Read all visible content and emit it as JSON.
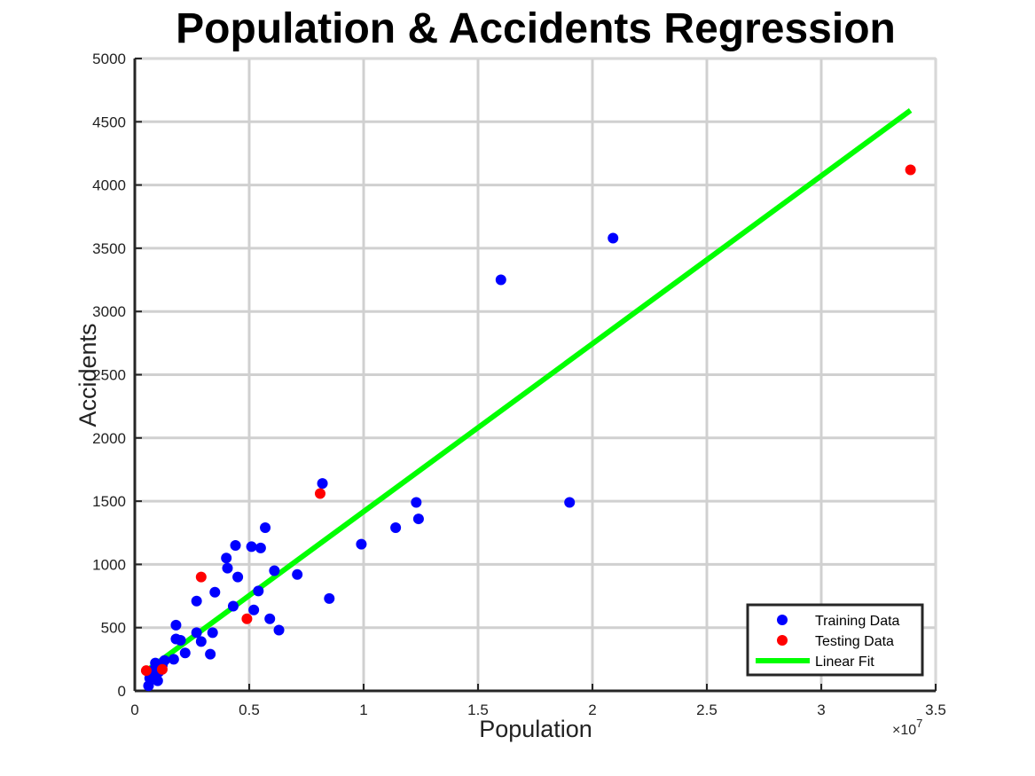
{
  "chart_data": {
    "type": "scatter",
    "title": "Population & Accidents Regression",
    "xlabel": "Population",
    "ylabel": "Accidents",
    "x_exponent_label": "×10",
    "x_exponent_power": "7",
    "xlim": [
      0,
      35000000
    ],
    "ylim": [
      0,
      5000
    ],
    "x_ticks": [
      0,
      5000000,
      10000000,
      15000000,
      20000000,
      25000000,
      30000000,
      35000000
    ],
    "x_tick_labels": [
      "0",
      "0.5",
      "1",
      "1.5",
      "2",
      "2.5",
      "3",
      "3.5"
    ],
    "y_ticks": [
      0,
      500,
      1000,
      1500,
      2000,
      2500,
      3000,
      3500,
      4000,
      4500,
      5000
    ],
    "y_tick_labels": [
      "0",
      "500",
      "1000",
      "1500",
      "2000",
      "2500",
      "3000",
      "3500",
      "4000",
      "4500",
      "5000"
    ],
    "grid": true,
    "legend_position": "bottom-right",
    "series": [
      {
        "name": "Training Data",
        "kind": "scatter",
        "color": "#0000ff",
        "points": [
          [
            600000,
            40
          ],
          [
            650000,
            100
          ],
          [
            700000,
            120
          ],
          [
            800000,
            160
          ],
          [
            900000,
            220
          ],
          [
            1000000,
            80
          ],
          [
            1050000,
            150
          ],
          [
            1200000,
            200
          ],
          [
            1300000,
            240
          ],
          [
            1700000,
            250
          ],
          [
            1800000,
            410
          ],
          [
            1800000,
            520
          ],
          [
            2000000,
            400
          ],
          [
            2200000,
            300
          ],
          [
            2700000,
            460
          ],
          [
            2700000,
            710
          ],
          [
            2900000,
            390
          ],
          [
            3300000,
            290
          ],
          [
            3400000,
            460
          ],
          [
            3500000,
            780
          ],
          [
            4000000,
            1050
          ],
          [
            4050000,
            970
          ],
          [
            4300000,
            670
          ],
          [
            4400000,
            1150
          ],
          [
            4500000,
            900
          ],
          [
            5100000,
            1140
          ],
          [
            5200000,
            640
          ],
          [
            5400000,
            790
          ],
          [
            5500000,
            1130
          ],
          [
            5700000,
            1290
          ],
          [
            5900000,
            570
          ],
          [
            6100000,
            950
          ],
          [
            6300000,
            480
          ],
          [
            7100000,
            920
          ],
          [
            8200000,
            1640
          ],
          [
            8500000,
            730
          ],
          [
            9900000,
            1160
          ],
          [
            11400000,
            1290
          ],
          [
            12300000,
            1490
          ],
          [
            12400000,
            1360
          ],
          [
            16000000,
            3250
          ],
          [
            19000000,
            1490
          ],
          [
            20900000,
            3580
          ]
        ]
      },
      {
        "name": "Testing Data",
        "kind": "scatter",
        "color": "#ff0000",
        "points": [
          [
            500000,
            160
          ],
          [
            1200000,
            170
          ],
          [
            2900000,
            900
          ],
          [
            4900000,
            570
          ],
          [
            8100000,
            1560
          ],
          [
            33900000,
            4120
          ]
        ]
      },
      {
        "name": "Linear Fit",
        "kind": "line",
        "color": "#00ff00",
        "points": [
          [
            600000,
            170
          ],
          [
            33900000,
            4590
          ]
        ]
      }
    ]
  }
}
